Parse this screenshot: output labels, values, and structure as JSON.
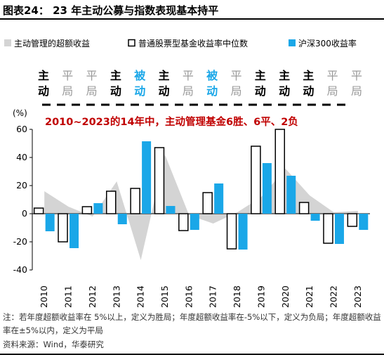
{
  "figure": {
    "title": "图表24： 23 年主动公募与指数表现基本持平",
    "footnote": "注：若年度超额收益率在 5%以上，定义为胜局；年度超额收益率在-5%以下，定义为负局；年度超额收益率在±5%以内，定义为平局",
    "source": "资料来源：Wind，华泰研究"
  },
  "colors": {
    "fund": "#ffffff",
    "fund_border": "#000000",
    "index": "#1aa7e8",
    "excess": "#d4d4d4",
    "win": "#000000",
    "lose": "#1aa7e8",
    "draw": "#9a9a9a",
    "highlight": "#c00000"
  },
  "chart_data": {
    "type": "bar",
    "ylabel": "(%)",
    "ylim": [
      -40,
      60
    ],
    "yticks": [
      -40,
      -20,
      0,
      20,
      40,
      60
    ],
    "annotation": "2010~2023的14年中，主动管理基金6胜、6平、2负",
    "categories": [
      "2010",
      "2011",
      "2012",
      "2013",
      "2014",
      "2015",
      "2016",
      "2017",
      "2018",
      "2019",
      "2020",
      "2021",
      "2022",
      "2023"
    ],
    "outcomes": [
      "主动",
      "平局",
      "平局",
      "主动",
      "被动",
      "主动",
      "平局",
      "被动",
      "平局",
      "主动",
      "主动",
      "主动",
      "平局",
      "平局"
    ],
    "outcome_types": [
      "win",
      "draw",
      "draw",
      "win",
      "lose",
      "win",
      "draw",
      "lose",
      "draw",
      "win",
      "win",
      "win",
      "draw",
      "draw"
    ],
    "series": [
      {
        "name": "主动管理的超额收益",
        "type": "area",
        "values": [
          16,
          5,
          -2,
          23,
          -33,
          42,
          -1,
          -7,
          1,
          12,
          32,
          13,
          1,
          2
        ]
      },
      {
        "name": "普通股票型基金收益率中位数",
        "type": "bar",
        "values": [
          4,
          -20,
          5,
          16,
          18,
          47,
          -12,
          15,
          -25,
          48,
          60,
          8,
          -21,
          -9
        ]
      },
      {
        "name": "沪深300收益率",
        "type": "bar",
        "values": [
          -12.5,
          -24.5,
          7.5,
          -7.5,
          51.5,
          5.5,
          -11.5,
          21.5,
          -25.5,
          36,
          27,
          -5,
          -21.5,
          -11.5
        ]
      }
    ],
    "grid": false,
    "legend_position": "top"
  }
}
